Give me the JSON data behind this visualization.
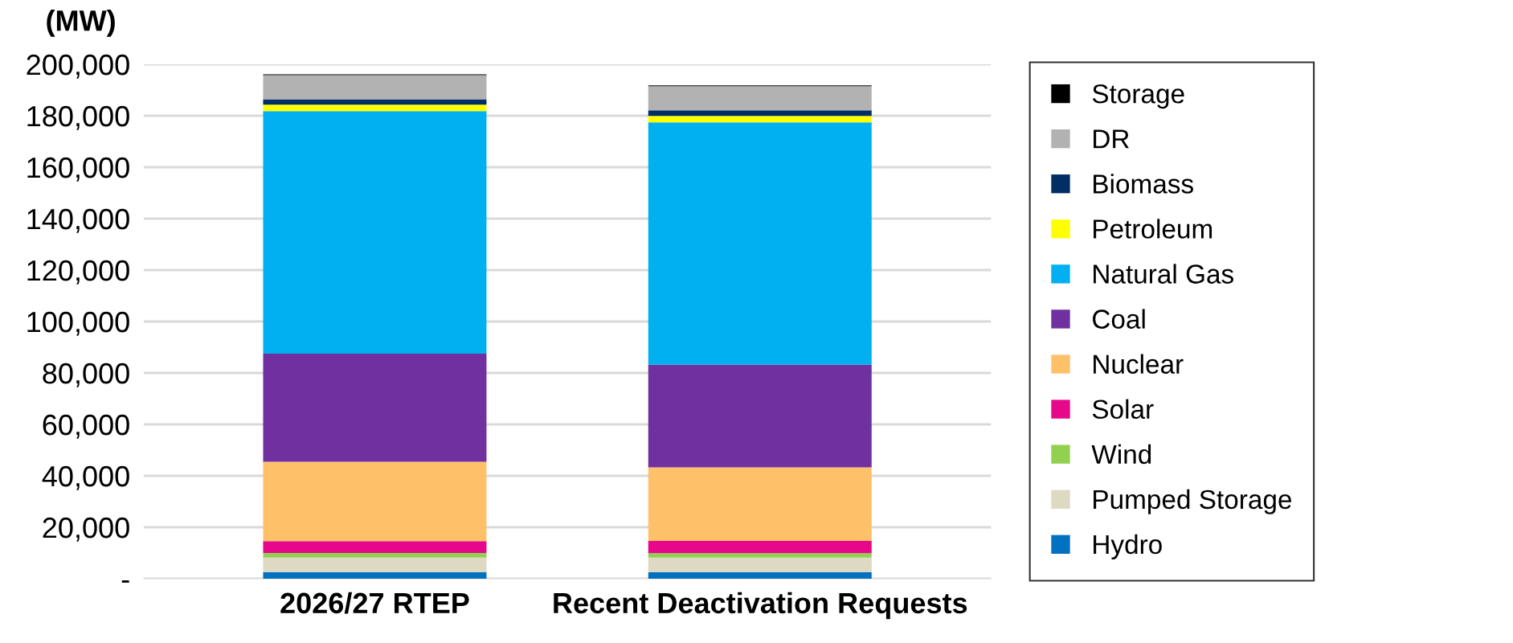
{
  "chart_data": {
    "type": "bar",
    "stacked": true,
    "ylabel": "(MW)",
    "categories": [
      "2026/27 RTEP",
      "Recent Deactivation Requests"
    ],
    "series": [
      {
        "name": "Hydro",
        "color": "#0070c0",
        "values": [
          2600,
          2600
        ]
      },
      {
        "name": "Pumped Storage",
        "color": "#ddd9c3",
        "values": [
          5600,
          5600
        ]
      },
      {
        "name": "Wind",
        "color": "#92d050",
        "values": [
          1800,
          1700
        ]
      },
      {
        "name": "Solar",
        "color": "#e6078b",
        "values": [
          4600,
          4800
        ]
      },
      {
        "name": "Nuclear",
        "color": "#ffc06a",
        "values": [
          30900,
          28600
        ]
      },
      {
        "name": "Coal",
        "color": "#7030a0",
        "values": [
          42000,
          39900
        ]
      },
      {
        "name": "Natural Gas",
        "color": "#00b0f0",
        "values": [
          94300,
          94200
        ]
      },
      {
        "name": "Petroleum",
        "color": "#ffff00",
        "values": [
          2500,
          2500
        ]
      },
      {
        "name": "Biomass",
        "color": "#002f66",
        "values": [
          2100,
          2200
        ]
      },
      {
        "name": "DR",
        "color": "#b2b2b2",
        "values": [
          9400,
          9400
        ]
      },
      {
        "name": "Storage",
        "color": "#000000",
        "values": [
          300,
          300
        ]
      }
    ],
    "ylim": [
      0,
      200000
    ],
    "yticks": [
      {
        "value": 0,
        "label": "-"
      },
      {
        "value": 20000,
        "label": "20,000"
      },
      {
        "value": 40000,
        "label": "40,000"
      },
      {
        "value": 60000,
        "label": "60,000"
      },
      {
        "value": 80000,
        "label": "80,000"
      },
      {
        "value": 100000,
        "label": "100,000"
      },
      {
        "value": 120000,
        "label": "120,000"
      },
      {
        "value": 140000,
        "label": "140,000"
      },
      {
        "value": 160000,
        "label": "160,000"
      },
      {
        "value": 180000,
        "label": "180,000"
      },
      {
        "value": 200000,
        "label": "200,000"
      }
    ],
    "grid": "y",
    "legend": "right"
  }
}
